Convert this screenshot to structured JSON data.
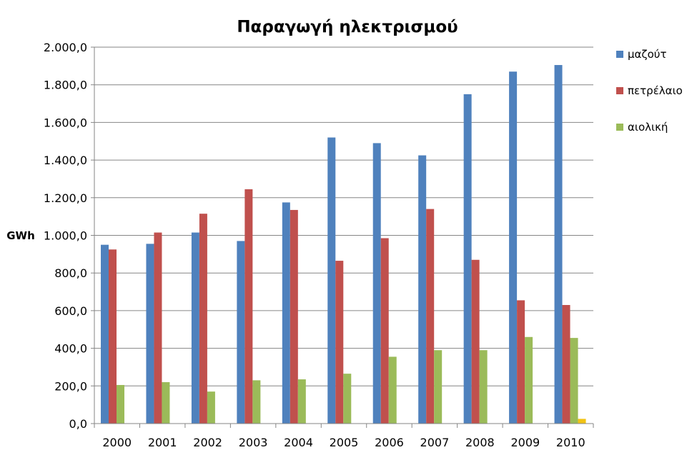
{
  "chart_data": {
    "type": "bar",
    "title": "Παραγωγή ηλεκτρισμού",
    "ylabel": "GWh",
    "xlabel": "",
    "ylim": [
      0,
      2000
    ],
    "ytick_labels": [
      "0,0",
      "200,0",
      "400,0",
      "600,0",
      "800,0",
      "1.000,0",
      "1.200,0",
      "1.400,0",
      "1.600,0",
      "1.800,0",
      "2.000,0"
    ],
    "grid": true,
    "legend_position": "right",
    "categories": [
      "2000",
      "2001",
      "2002",
      "2003",
      "2004",
      "2005",
      "2006",
      "2007",
      "2008",
      "2009",
      "2010"
    ],
    "series": [
      {
        "name": "μαζούτ",
        "color": "#4F81BD",
        "values": [
          950,
          955,
          1015,
          970,
          1175,
          1520,
          1490,
          1425,
          1750,
          1870,
          1905
        ]
      },
      {
        "name": "πετρέλαιο",
        "color": "#C0504D",
        "values": [
          925,
          1015,
          1115,
          1245,
          1135,
          865,
          985,
          1140,
          870,
          655,
          630
        ]
      },
      {
        "name": "αιολική",
        "color": "#9BBB59",
        "values": [
          205,
          220,
          170,
          230,
          235,
          265,
          355,
          390,
          390,
          460,
          455
        ]
      },
      {
        "color": "#F2C314",
        "values": [
          0,
          0,
          0,
          0,
          0,
          0,
          0,
          0,
          0,
          0,
          25
        ]
      }
    ]
  }
}
